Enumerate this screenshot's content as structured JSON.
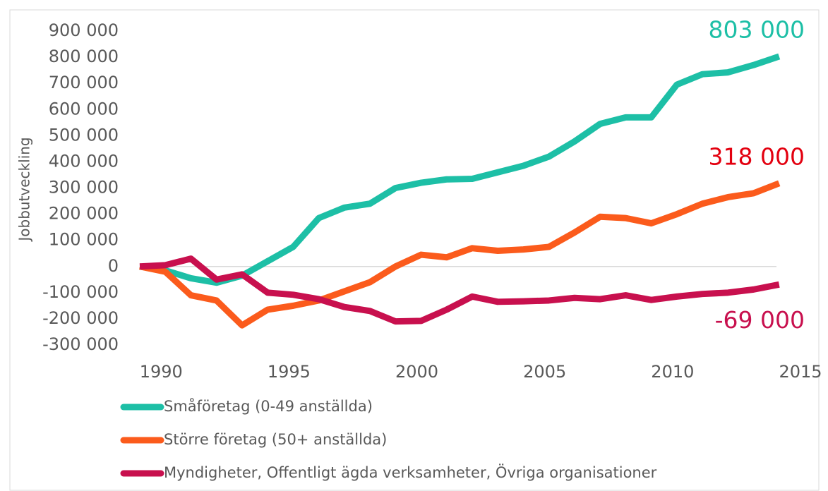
{
  "chart_data": {
    "type": "line",
    "y_label": "Jobbutveckling",
    "x": [
      1989,
      1990,
      1991,
      1992,
      1993,
      1994,
      1995,
      1996,
      1997,
      1998,
      1999,
      2000,
      2001,
      2002,
      2003,
      2004,
      2005,
      2006,
      2007,
      2008,
      2009,
      2010,
      2011,
      2012,
      2013,
      2014
    ],
    "xlim": [
      1989,
      2015
    ],
    "xticks": [
      1990,
      1995,
      2000,
      2005,
      2010,
      2015
    ],
    "ylim": [
      -300000,
      900000
    ],
    "yticks": [
      {
        "value": -300000,
        "label": "-300 000"
      },
      {
        "value": -200000,
        "label": "-200 000"
      },
      {
        "value": -100000,
        "label": "-100 000"
      },
      0,
      {
        "value": 100000,
        "label": "100 000"
      },
      {
        "value": 200000,
        "label": "200 000"
      },
      {
        "value": 300000,
        "label": "300 000"
      },
      {
        "value": 400000,
        "label": "400 000"
      },
      {
        "value": 500000,
        "label": "500 000"
      },
      {
        "value": 600000,
        "label": "600 000"
      },
      {
        "value": 700000,
        "label": "700 000"
      },
      {
        "value": 800000,
        "label": "800 000"
      },
      {
        "value": 900000,
        "label": "900 000"
      }
    ],
    "legend": "bottom",
    "series": [
      {
        "name": "Småföretag (0-49 anställda)",
        "color": "#1dbfa6",
        "end_label": "803 000",
        "end_label_color": "#1dbfa6",
        "values": [
          0,
          -15000,
          -45000,
          -62000,
          -35000,
          20000,
          75000,
          185000,
          225000,
          240000,
          300000,
          320000,
          333000,
          335000,
          360000,
          385000,
          420000,
          478000,
          545000,
          570000,
          570000,
          695000,
          735000,
          742000,
          770000,
          803000
        ]
      },
      {
        "name": "Större företag (50+ anställda)",
        "color": "#fb5b1c",
        "end_label": "318 000",
        "end_label_color": "#e3000f",
        "values": [
          0,
          -20000,
          -110000,
          -130000,
          -225000,
          -165000,
          -150000,
          -130000,
          -95000,
          -60000,
          0,
          45000,
          35000,
          70000,
          60000,
          65000,
          75000,
          130000,
          190000,
          185000,
          165000,
          200000,
          240000,
          265000,
          280000,
          318000
        ]
      },
      {
        "name": "Myndigheter, Offentligt ägda verksamheter, Övriga organisationer",
        "color": "#c8104e",
        "end_label": "-69 000",
        "end_label_color": "#c8104e",
        "values": [
          0,
          5000,
          30000,
          -50000,
          -30000,
          -100000,
          -108000,
          -125000,
          -155000,
          -170000,
          -210000,
          -208000,
          -165000,
          -115000,
          -135000,
          -133000,
          -130000,
          -120000,
          -125000,
          -110000,
          -128000,
          -115000,
          -105000,
          -100000,
          -88000,
          -69000
        ]
      }
    ]
  }
}
